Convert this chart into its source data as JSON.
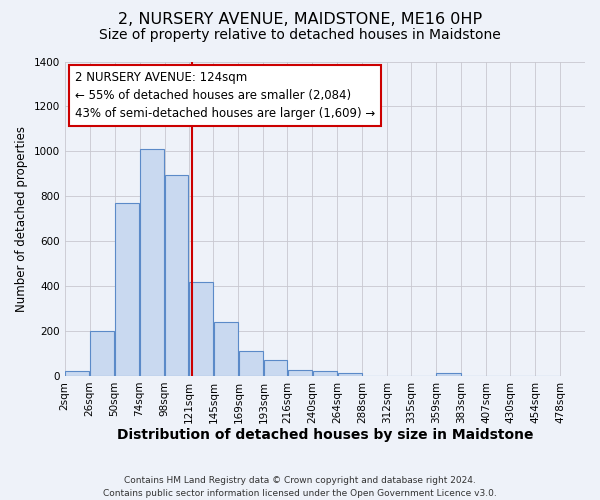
{
  "title": "2, NURSERY AVENUE, MAIDSTONE, ME16 0HP",
  "subtitle": "Size of property relative to detached houses in Maidstone",
  "xlabel": "Distribution of detached houses by size in Maidstone",
  "ylabel": "Number of detached properties",
  "bar_left_edges": [
    2,
    26,
    50,
    74,
    98,
    121,
    145,
    169,
    193,
    216,
    240,
    264,
    288,
    312,
    335,
    359,
    383,
    407,
    430,
    454
  ],
  "bar_widths": [
    24,
    24,
    24,
    24,
    23,
    24,
    24,
    24,
    23,
    24,
    24,
    24,
    24,
    23,
    24,
    24,
    24,
    23,
    24,
    24
  ],
  "bar_heights": [
    20,
    200,
    770,
    1010,
    895,
    420,
    242,
    110,
    70,
    25,
    22,
    15,
    0,
    0,
    0,
    15,
    0,
    0,
    0,
    0
  ],
  "bar_color": "#c9d9f0",
  "bar_edge_color": "#5b8ac8",
  "vline_x": 124,
  "vline_color": "#cc0000",
  "annotation_line1": "2 NURSERY AVENUE: 124sqm",
  "annotation_line2": "← 55% of detached houses are smaller (2,084)",
  "annotation_line3": "43% of semi-detached houses are larger (1,609) →",
  "annotation_box_facecolor": "white",
  "annotation_box_edgecolor": "#cc0000",
  "xtick_labels": [
    "2sqm",
    "26sqm",
    "50sqm",
    "74sqm",
    "98sqm",
    "121sqm",
    "145sqm",
    "169sqm",
    "193sqm",
    "216sqm",
    "240sqm",
    "264sqm",
    "288sqm",
    "312sqm",
    "335sqm",
    "359sqm",
    "383sqm",
    "407sqm",
    "430sqm",
    "454sqm",
    "478sqm"
  ],
  "xtick_positions": [
    2,
    26,
    50,
    74,
    98,
    121,
    145,
    169,
    193,
    216,
    240,
    264,
    288,
    312,
    335,
    359,
    383,
    407,
    430,
    454,
    478
  ],
  "ylim": [
    0,
    1400
  ],
  "xlim": [
    2,
    502
  ],
  "grid_color": "#c8c8d0",
  "background_color": "#eef2f9",
  "footer_text": "Contains HM Land Registry data © Crown copyright and database right 2024.\nContains public sector information licensed under the Open Government Licence v3.0.",
  "title_fontsize": 11.5,
  "subtitle_fontsize": 10,
  "xlabel_fontsize": 10,
  "ylabel_fontsize": 8.5,
  "tick_fontsize": 7.5,
  "annotation_fontsize": 8.5
}
